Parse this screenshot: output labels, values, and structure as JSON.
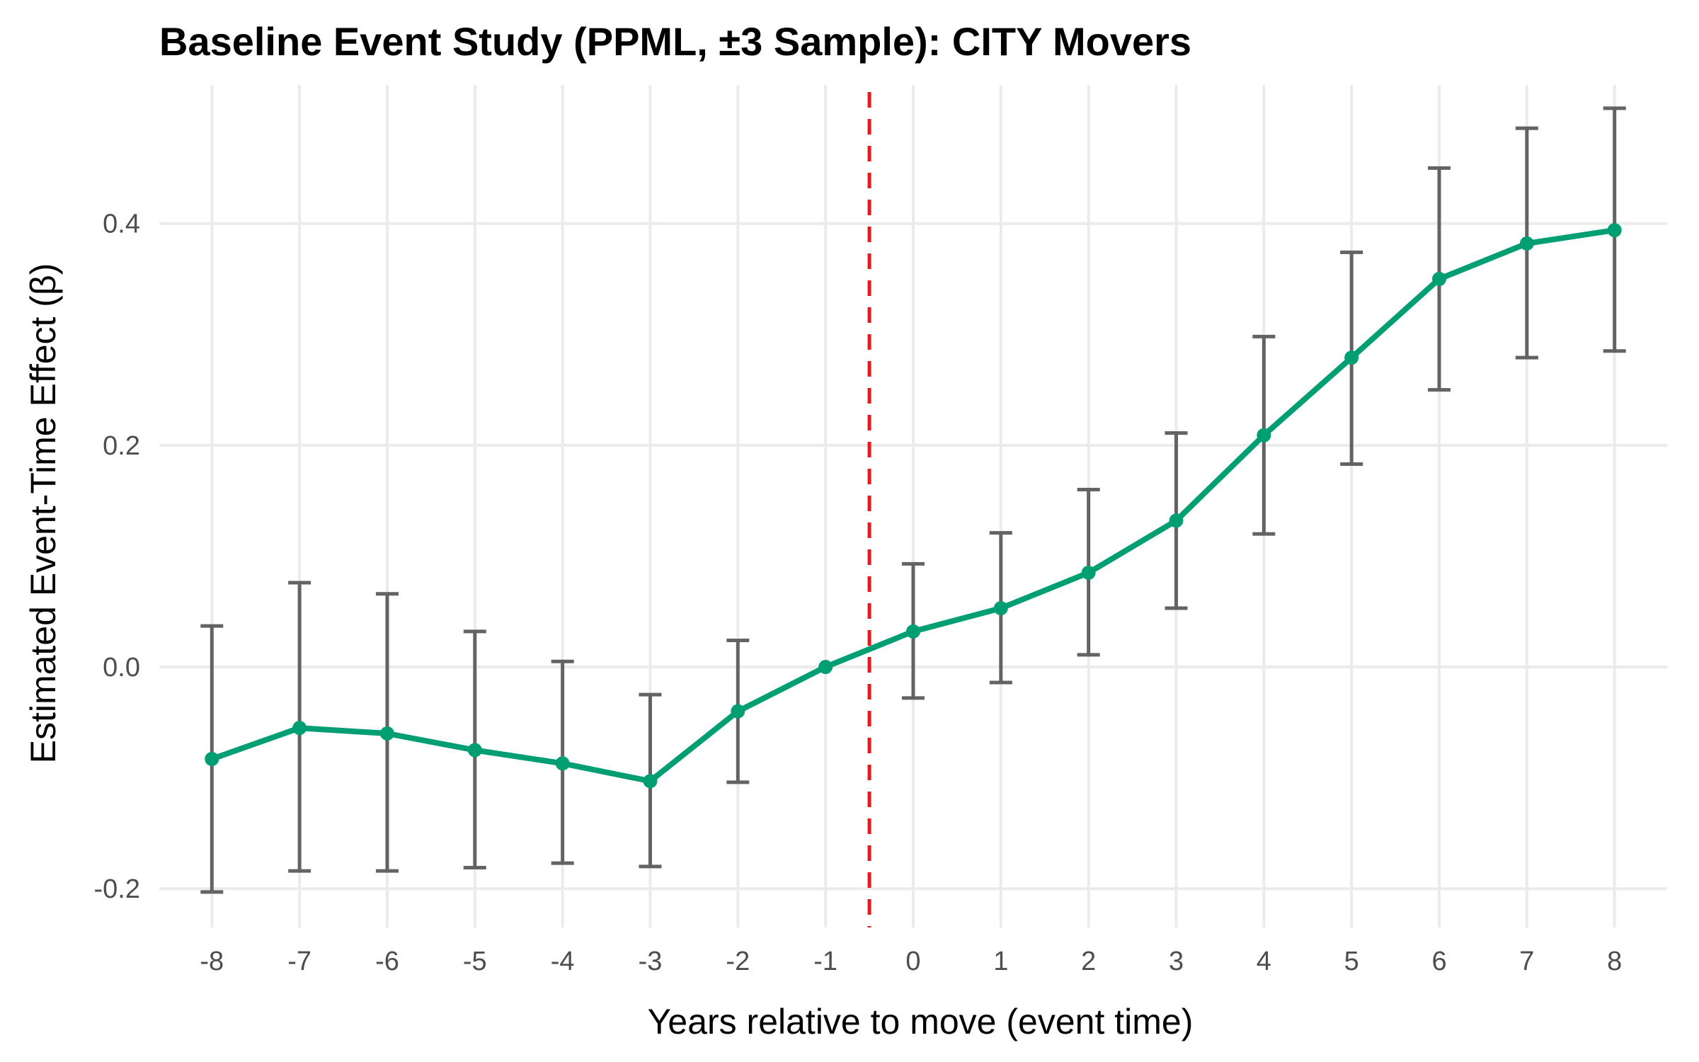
{
  "chart_data": {
    "type": "line",
    "title": "Baseline Event Study (PPML, ±3 Sample): CITY Movers",
    "xlabel": "Years relative to move (event time)",
    "ylabel": "Estimated Event-Time Effect (β)",
    "x": [
      -8,
      -7,
      -6,
      -5,
      -4,
      -3,
      -2,
      -1,
      0,
      1,
      2,
      3,
      4,
      5,
      6,
      7,
      8
    ],
    "x_tick_labels": [
      "-8",
      "-7",
      "-6",
      "-5",
      "-4",
      "-3",
      "-2",
      "-1",
      "0",
      "1",
      "2",
      "3",
      "4",
      "5",
      "6",
      "7",
      "8"
    ],
    "series": [
      {
        "values": [
          -0.083,
          -0.055,
          -0.06,
          -0.075,
          -0.087,
          -0.103,
          -0.04,
          0.0,
          0.032,
          0.053,
          0.085,
          0.132,
          0.209,
          0.279,
          0.35,
          0.382,
          0.394
        ],
        "ci_low": [
          -0.203,
          -0.184,
          -0.184,
          -0.181,
          -0.177,
          -0.18,
          -0.104,
          0.0,
          -0.028,
          -0.014,
          0.011,
          0.053,
          0.12,
          0.183,
          0.25,
          0.279,
          0.285
        ],
        "ci_high": [
          0.037,
          0.076,
          0.066,
          0.032,
          0.005,
          -0.025,
          0.024,
          0.0,
          0.093,
          0.121,
          0.16,
          0.211,
          0.298,
          0.374,
          0.45,
          0.486,
          0.504
        ],
        "color": "#009E73",
        "errorbar_color": "#636363"
      }
    ],
    "reference_line": {
      "x": -0.5,
      "color": "#E41A1C",
      "style": "dashed"
    },
    "y_ticks": [
      -0.2,
      0.0,
      0.2,
      0.4
    ],
    "y_tick_labels": [
      "-0.2",
      "0.0",
      "0.2",
      "0.4"
    ],
    "xlim": [
      -8.6,
      8.6
    ],
    "ylim": [
      -0.235,
      0.525
    ],
    "grid": true,
    "legend": "none"
  }
}
